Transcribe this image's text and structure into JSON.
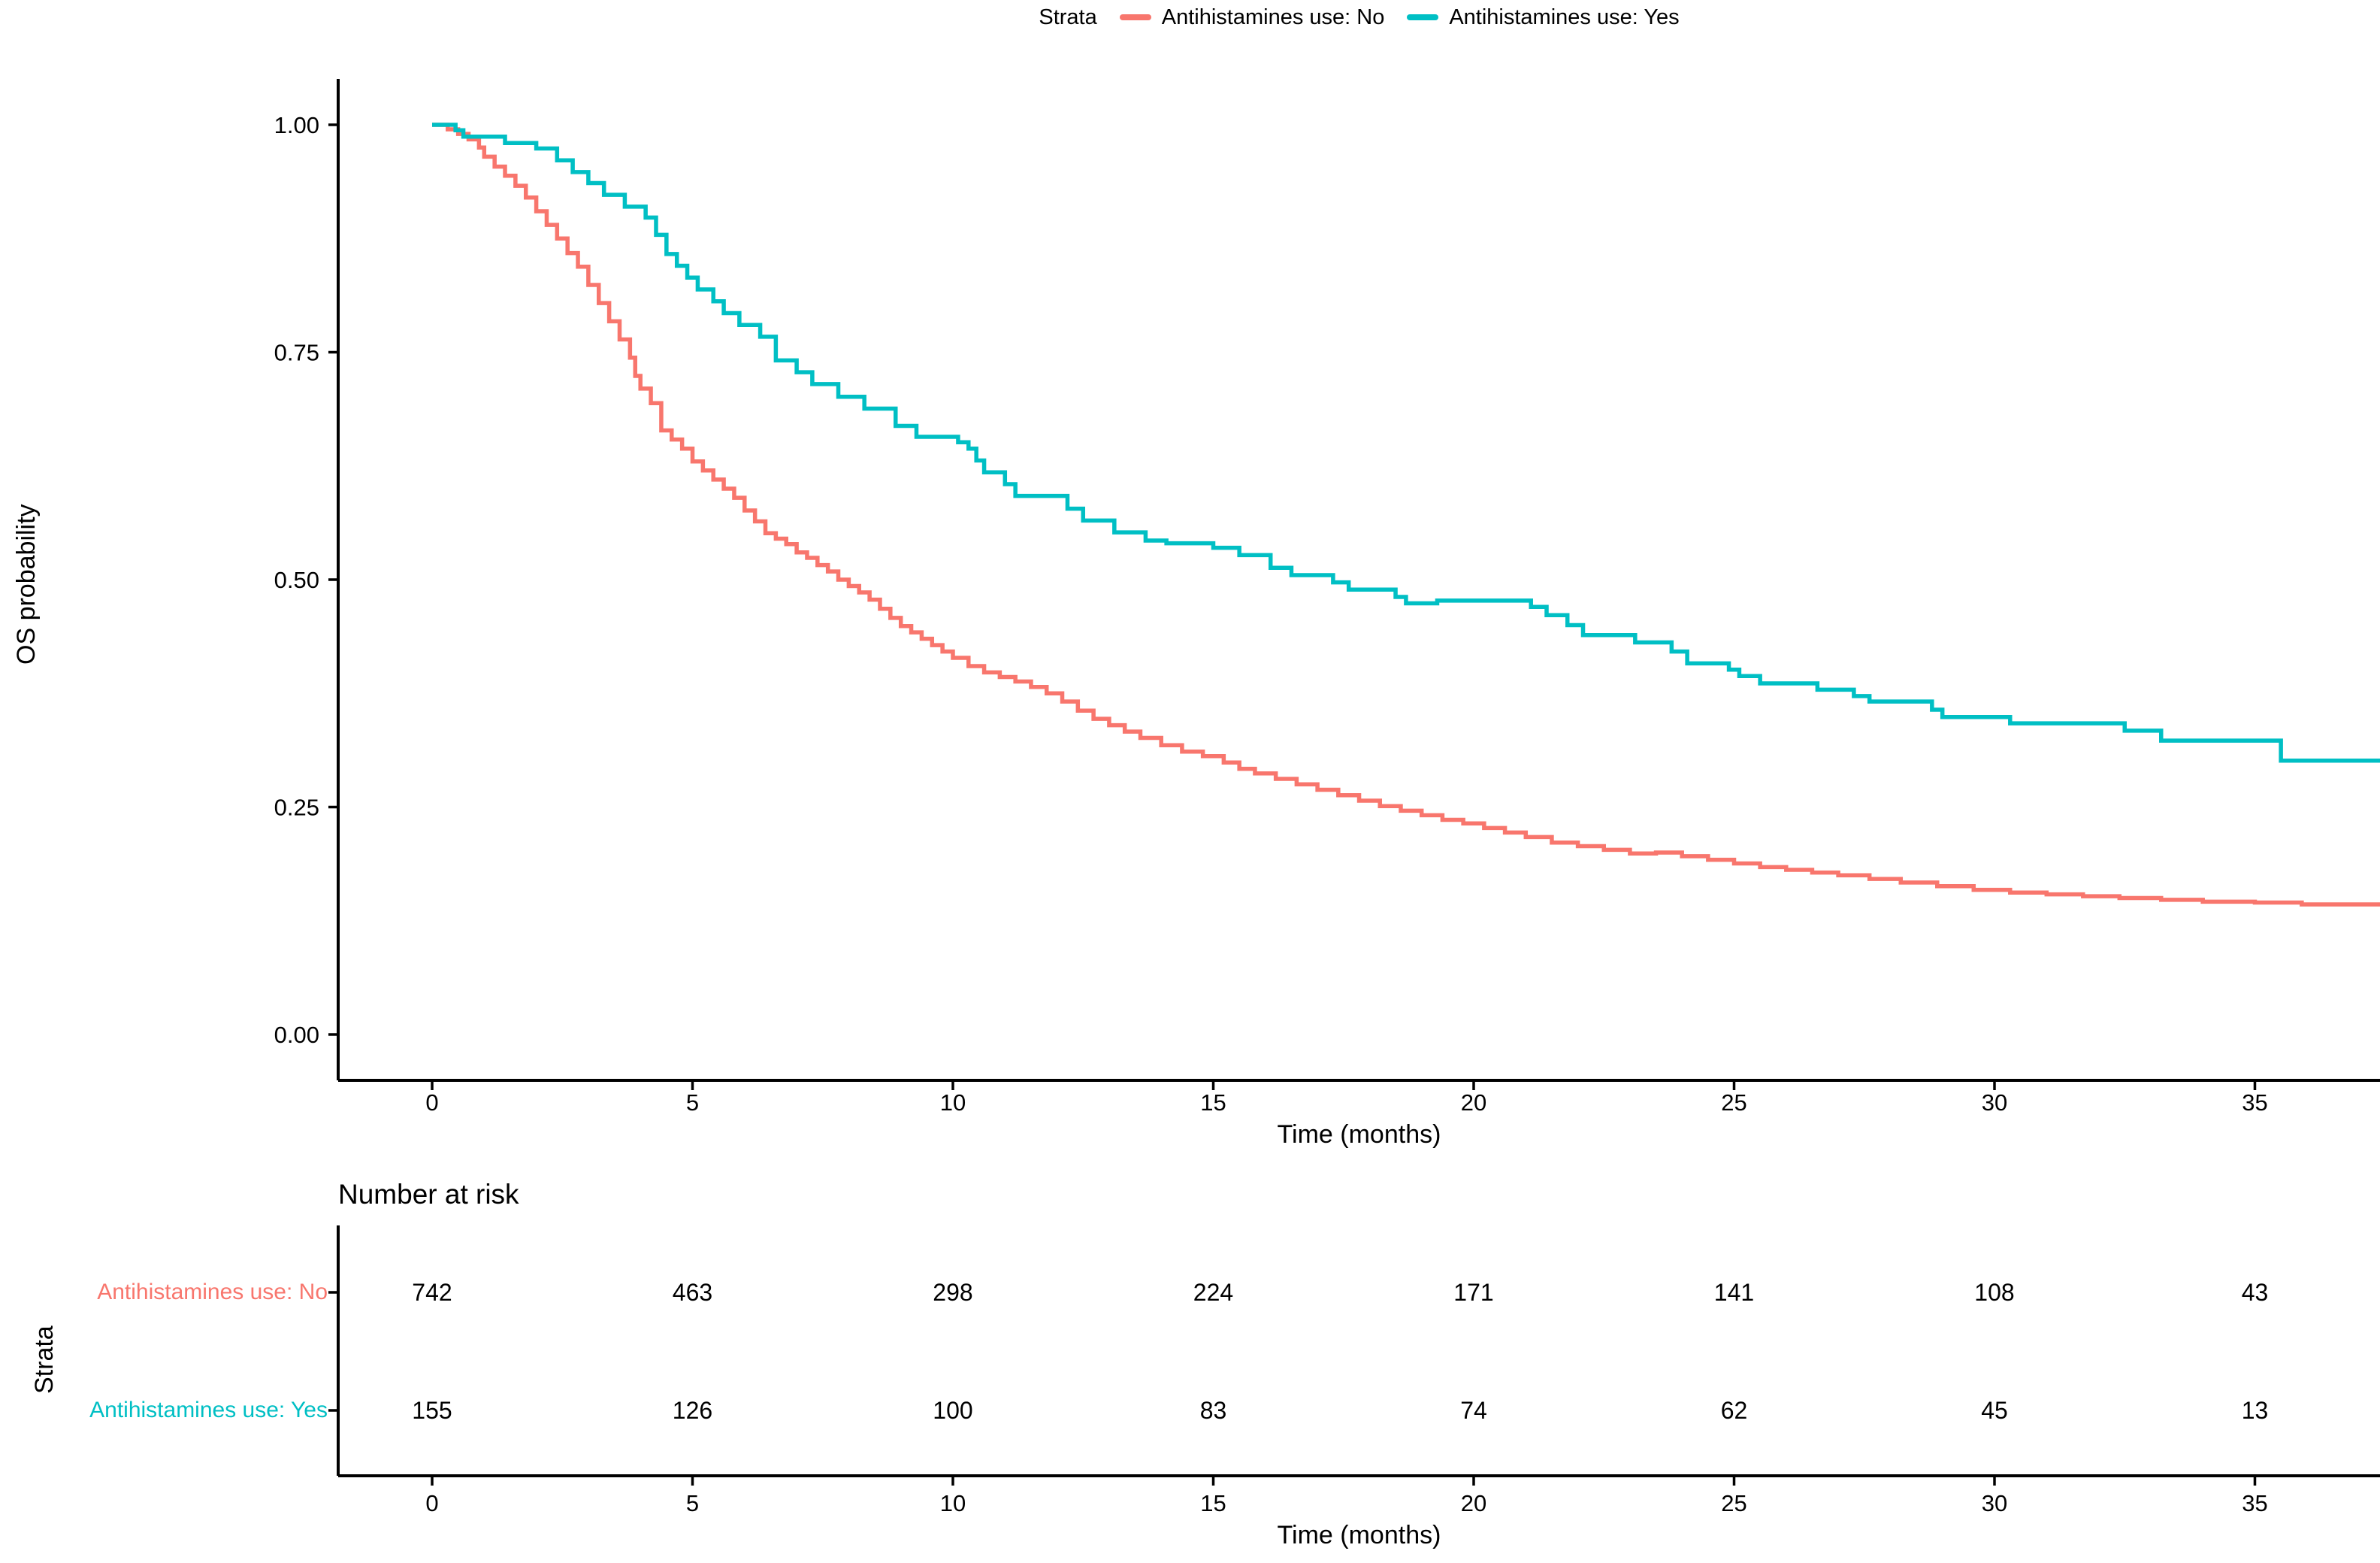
{
  "legend": {
    "title": "Strata",
    "items": [
      {
        "label": "Antihistamines use: No",
        "color": "#F8766D"
      },
      {
        "label": "Antihistamines use: Yes",
        "color": "#00BFC4"
      }
    ]
  },
  "axes": {
    "y_title": "OS probability",
    "x_title": "Time (months)",
    "risk_x_title": "Time (months)"
  },
  "risk_table": {
    "title": "Number at risk",
    "y_title": "Strata",
    "time_ticks": [
      0,
      5,
      10,
      15,
      20,
      25,
      30,
      35
    ],
    "rows": [
      {
        "label": "Antihistamines use: No",
        "color": "#F8766D",
        "counts": [
          742,
          463,
          298,
          224,
          171,
          141,
          108,
          43
        ]
      },
      {
        "label": "Antihistamines use: Yes",
        "color": "#00BFC4",
        "counts": [
          155,
          126,
          100,
          83,
          74,
          62,
          45,
          13
        ]
      }
    ]
  },
  "chart_data": {
    "type": "line",
    "subtype": "kaplan-meier-step",
    "title": "",
    "xlabel": "Time (months)",
    "ylabel": "OS probability",
    "legend_title": "Strata",
    "legend_position": "top",
    "grid": false,
    "xlim": [
      -1.8,
      37.4
    ],
    "ylim": [
      -0.05,
      1.05
    ],
    "x_ticks": [
      0,
      5,
      10,
      15,
      20,
      25,
      30,
      35
    ],
    "y_ticks": [
      {
        "value": 0.0,
        "label": "0.00"
      },
      {
        "value": 0.25,
        "label": "0.25"
      },
      {
        "value": 0.5,
        "label": "0.50"
      },
      {
        "value": 0.75,
        "label": "0.75"
      },
      {
        "value": 1.0,
        "label": "1.00"
      }
    ],
    "series": [
      {
        "name": "Antihistamines use: No",
        "color": "#F8766D",
        "steps": [
          [
            0,
            1.0
          ],
          [
            0.3,
            0.995
          ],
          [
            0.5,
            0.99
          ],
          [
            0.7,
            0.984
          ],
          [
            0.9,
            0.975
          ],
          [
            1.0,
            0.965
          ],
          [
            1.2,
            0.954
          ],
          [
            1.4,
            0.944
          ],
          [
            1.6,
            0.933
          ],
          [
            1.8,
            0.92
          ],
          [
            2.0,
            0.905
          ],
          [
            2.2,
            0.89
          ],
          [
            2.4,
            0.875
          ],
          [
            2.6,
            0.859
          ],
          [
            2.8,
            0.844
          ],
          [
            3.0,
            0.824
          ],
          [
            3.2,
            0.804
          ],
          [
            3.4,
            0.784
          ],
          [
            3.6,
            0.764
          ],
          [
            3.8,
            0.744
          ],
          [
            3.9,
            0.724
          ],
          [
            4.0,
            0.71
          ],
          [
            4.2,
            0.694
          ],
          [
            4.4,
            0.664
          ],
          [
            4.6,
            0.654
          ],
          [
            4.8,
            0.644
          ],
          [
            5.0,
            0.63
          ],
          [
            5.2,
            0.62
          ],
          [
            5.4,
            0.61
          ],
          [
            5.6,
            0.6
          ],
          [
            5.8,
            0.59
          ],
          [
            6.0,
            0.576
          ],
          [
            6.2,
            0.564
          ],
          [
            6.4,
            0.551
          ],
          [
            6.6,
            0.545
          ],
          [
            6.8,
            0.539
          ],
          [
            7.0,
            0.53
          ],
          [
            7.2,
            0.524
          ],
          [
            7.4,
            0.516
          ],
          [
            7.6,
            0.509
          ],
          [
            7.8,
            0.5
          ],
          [
            8.0,
            0.493
          ],
          [
            8.2,
            0.486
          ],
          [
            8.4,
            0.478
          ],
          [
            8.6,
            0.468
          ],
          [
            8.8,
            0.458
          ],
          [
            9.0,
            0.449
          ],
          [
            9.2,
            0.442
          ],
          [
            9.4,
            0.435
          ],
          [
            9.6,
            0.428
          ],
          [
            9.8,
            0.421
          ],
          [
            10.0,
            0.414
          ],
          [
            10.3,
            0.405
          ],
          [
            10.6,
            0.398
          ],
          [
            10.9,
            0.393
          ],
          [
            11.2,
            0.388
          ],
          [
            11.5,
            0.382
          ],
          [
            11.8,
            0.375
          ],
          [
            12.1,
            0.366
          ],
          [
            12.4,
            0.356
          ],
          [
            12.7,
            0.347
          ],
          [
            13.0,
            0.34
          ],
          [
            13.3,
            0.333
          ],
          [
            13.6,
            0.326
          ],
          [
            14.0,
            0.318
          ],
          [
            14.4,
            0.311
          ],
          [
            14.8,
            0.306
          ],
          [
            15.2,
            0.299
          ],
          [
            15.5,
            0.292
          ],
          [
            15.8,
            0.287
          ],
          [
            16.2,
            0.281
          ],
          [
            16.6,
            0.275
          ],
          [
            17.0,
            0.269
          ],
          [
            17.4,
            0.263
          ],
          [
            17.8,
            0.257
          ],
          [
            18.2,
            0.251
          ],
          [
            18.6,
            0.246
          ],
          [
            19.0,
            0.241
          ],
          [
            19.4,
            0.236
          ],
          [
            19.8,
            0.232
          ],
          [
            20.2,
            0.227
          ],
          [
            20.6,
            0.222
          ],
          [
            21.0,
            0.217
          ],
          [
            21.5,
            0.211
          ],
          [
            22.0,
            0.207
          ],
          [
            22.5,
            0.203
          ],
          [
            23.0,
            0.199
          ],
          [
            23.5,
            0.2
          ],
          [
            24.0,
            0.196
          ],
          [
            24.5,
            0.192
          ],
          [
            25.0,
            0.188
          ],
          [
            25.5,
            0.184
          ],
          [
            26.0,
            0.181
          ],
          [
            26.5,
            0.178
          ],
          [
            27.0,
            0.175
          ],
          [
            27.6,
            0.171
          ],
          [
            28.2,
            0.167
          ],
          [
            28.9,
            0.163
          ],
          [
            29.6,
            0.159
          ],
          [
            30.3,
            0.156
          ],
          [
            31.0,
            0.154
          ],
          [
            31.7,
            0.152
          ],
          [
            32.4,
            0.15
          ],
          [
            33.2,
            0.148
          ],
          [
            34.0,
            0.146
          ],
          [
            35.0,
            0.145
          ],
          [
            35.9,
            0.143
          ],
          [
            37.4,
            0.143
          ]
        ]
      },
      {
        "name": "Antihistamines use: Yes",
        "color": "#00BFC4",
        "steps": [
          [
            0,
            1.0
          ],
          [
            0.45,
            0.994
          ],
          [
            0.6,
            0.987
          ],
          [
            1.4,
            0.98
          ],
          [
            2.0,
            0.974
          ],
          [
            2.4,
            0.961
          ],
          [
            2.7,
            0.948
          ],
          [
            3.0,
            0.936
          ],
          [
            3.3,
            0.923
          ],
          [
            3.7,
            0.91
          ],
          [
            4.1,
            0.898
          ],
          [
            4.3,
            0.879
          ],
          [
            4.5,
            0.858
          ],
          [
            4.7,
            0.845
          ],
          [
            4.9,
            0.832
          ],
          [
            5.1,
            0.819
          ],
          [
            5.4,
            0.806
          ],
          [
            5.6,
            0.793
          ],
          [
            5.9,
            0.78
          ],
          [
            6.3,
            0.767
          ],
          [
            6.6,
            0.741
          ],
          [
            7.0,
            0.728
          ],
          [
            7.3,
            0.715
          ],
          [
            7.8,
            0.701
          ],
          [
            8.3,
            0.688
          ],
          [
            8.9,
            0.669
          ],
          [
            9.3,
            0.657
          ],
          [
            10.1,
            0.651
          ],
          [
            10.3,
            0.644
          ],
          [
            10.45,
            0.631
          ],
          [
            10.6,
            0.618
          ],
          [
            11.0,
            0.605
          ],
          [
            11.2,
            0.592
          ],
          [
            12.2,
            0.578
          ],
          [
            12.5,
            0.565
          ],
          [
            13.1,
            0.552
          ],
          [
            13.7,
            0.543
          ],
          [
            14.1,
            0.54
          ],
          [
            15.0,
            0.535
          ],
          [
            15.5,
            0.527
          ],
          [
            16.1,
            0.513
          ],
          [
            16.5,
            0.505
          ],
          [
            17.3,
            0.497
          ],
          [
            17.6,
            0.489
          ],
          [
            18.5,
            0.481
          ],
          [
            18.7,
            0.474
          ],
          [
            19.3,
            0.477
          ],
          [
            21.1,
            0.47
          ],
          [
            21.4,
            0.461
          ],
          [
            21.8,
            0.45
          ],
          [
            22.1,
            0.439
          ],
          [
            23.1,
            0.431
          ],
          [
            23.8,
            0.421
          ],
          [
            24.1,
            0.408
          ],
          [
            24.9,
            0.401
          ],
          [
            25.1,
            0.394
          ],
          [
            25.5,
            0.386
          ],
          [
            26.6,
            0.379
          ],
          [
            27.3,
            0.372
          ],
          [
            27.6,
            0.366
          ],
          [
            28.8,
            0.357
          ],
          [
            29.0,
            0.349
          ],
          [
            30.3,
            0.342
          ],
          [
            32.5,
            0.334
          ],
          [
            33.2,
            0.323
          ],
          [
            35.5,
            0.301
          ],
          [
            37.4,
            0.301
          ]
        ]
      }
    ]
  }
}
